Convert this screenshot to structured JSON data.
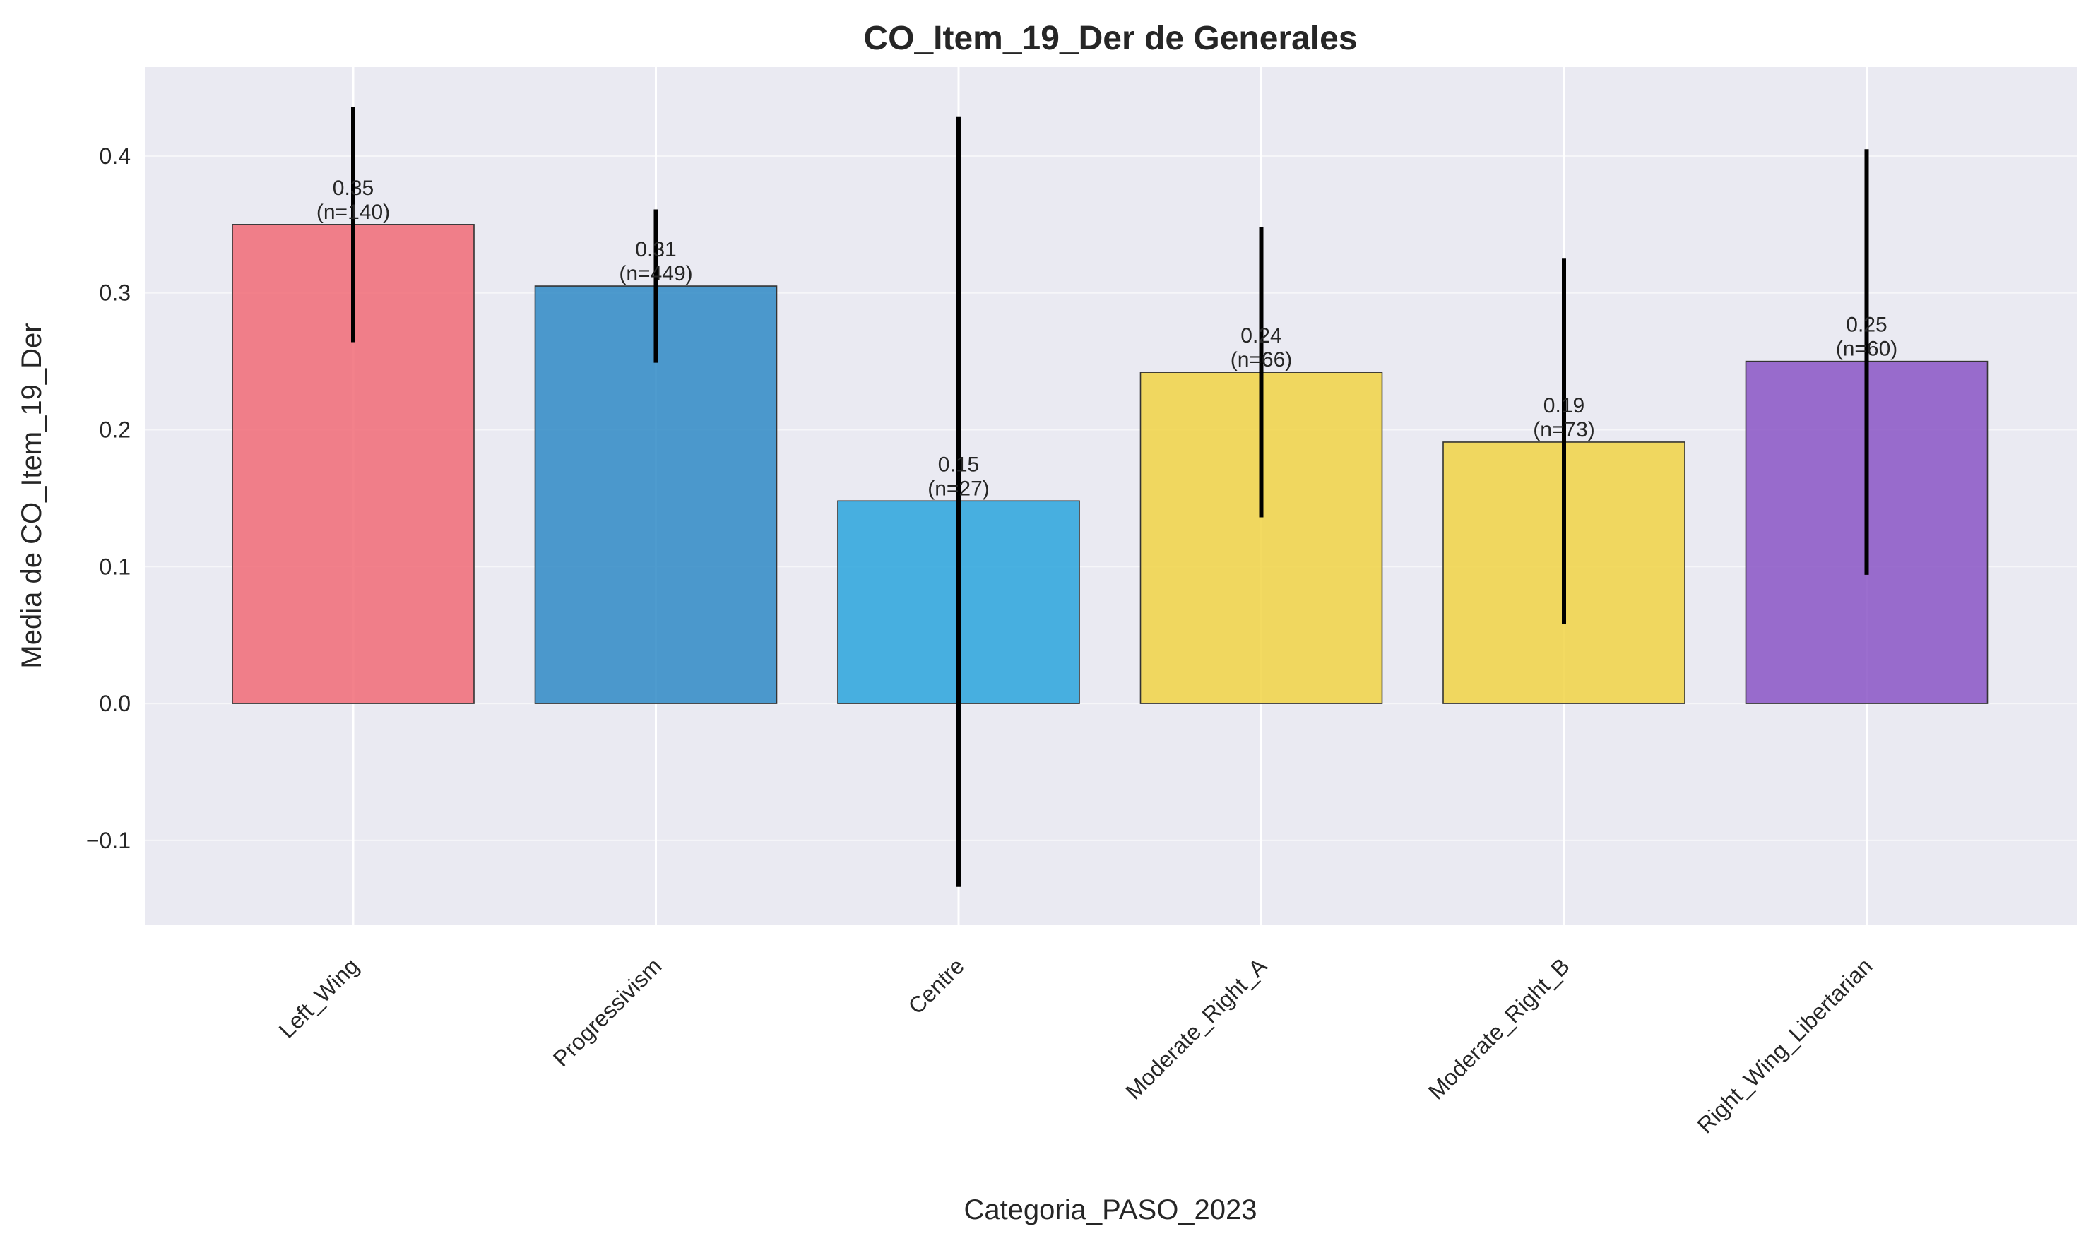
{
  "chart_data": {
    "type": "bar",
    "title": "CO_Item_19_Der de Generales",
    "xlabel": "Categoria_PASO_2023",
    "ylabel": "Media de CO_Item_19_Der",
    "categories": [
      "Left_Wing",
      "Progressivism",
      "Centre",
      "Moderate_Right_A",
      "Moderate_Right_B",
      "Right_Wing_Libertarian"
    ],
    "values": [
      0.35,
      0.305,
      0.148,
      0.242,
      0.191,
      0.25
    ],
    "value_labels": [
      "0.35",
      "0.31",
      "0.15",
      "0.24",
      "0.19",
      "0.25"
    ],
    "count_labels": [
      "(n=140)",
      "(n=449)",
      "(n=27)",
      "(n=66)",
      "(n=73)",
      "(n=60)"
    ],
    "error_low": [
      0.264,
      0.249,
      -0.134,
      0.136,
      0.058,
      0.094
    ],
    "error_high": [
      0.436,
      0.361,
      0.429,
      0.348,
      0.325,
      0.405
    ],
    "colors": [
      "#f16b77",
      "#2f8ac6",
      "#2aa5dd",
      "#f1d345",
      "#f1d345",
      "#8955c6"
    ],
    "ylim": [
      -0.162,
      0.465
    ],
    "yticks": [
      -0.1,
      0.0,
      0.1,
      0.2,
      0.3,
      0.4
    ],
    "ytick_labels": [
      "−0.1",
      "0.0",
      "0.1",
      "0.2",
      "0.3",
      "0.4"
    ],
    "grid": true,
    "background": "#eaeaf2"
  }
}
